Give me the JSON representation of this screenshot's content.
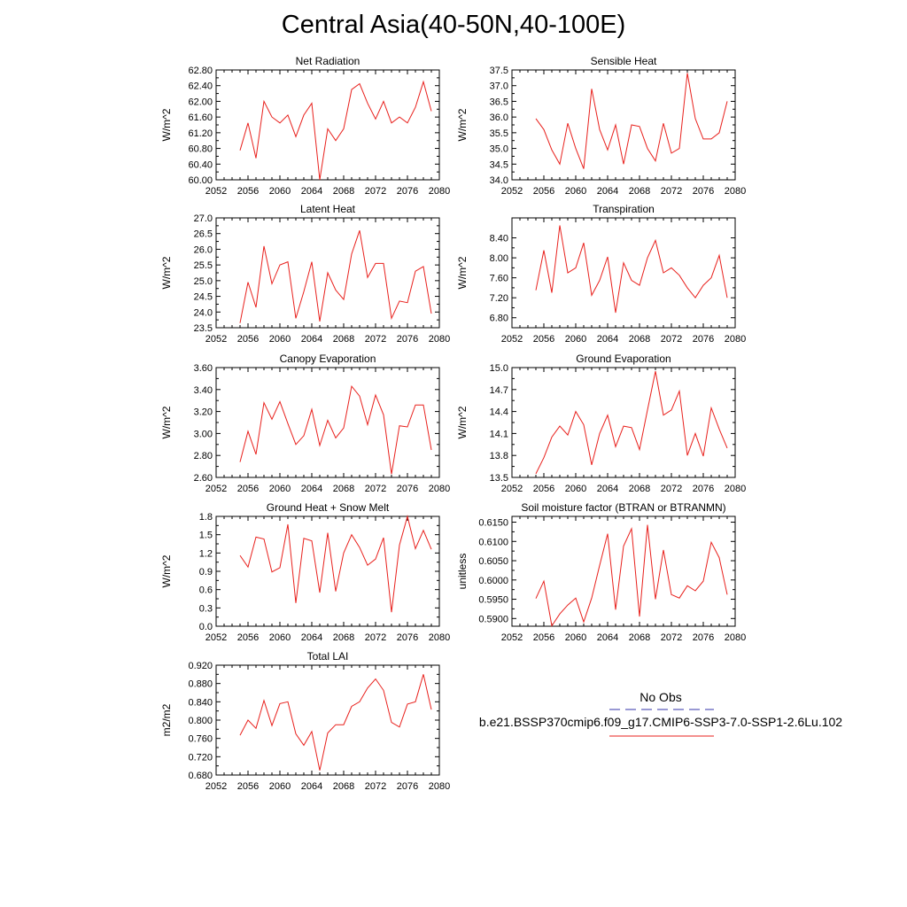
{
  "title": "Central Asia(40-50N,40-100E)",
  "colors": {
    "model": "#e8201c",
    "obs": "#3333aa",
    "axis": "#000000"
  },
  "legend": {
    "obs_label": "No Obs",
    "model_label": "b.e21.BSSP370cmip6.f09_g17.CMIP6-SSP3-7.0-SSP1-2.6Lu.102"
  },
  "chart_data": [
    {
      "type": "line",
      "title": "Net Radiation",
      "ylabel": "W/m^2",
      "xlim": [
        2052,
        2080
      ],
      "xticks": [
        2052,
        2056,
        2060,
        2064,
        2068,
        2072,
        2076,
        2080
      ],
      "ylim": [
        60.0,
        62.8
      ],
      "yticks": [
        "60.00",
        "60.40",
        "60.80",
        "61.20",
        "61.60",
        "62.00",
        "62.40",
        "62.80"
      ],
      "x": [
        2055,
        2056,
        2057,
        2058,
        2059,
        2060,
        2061,
        2062,
        2063,
        2064,
        2065,
        2066,
        2067,
        2068,
        2069,
        2070,
        2071,
        2072,
        2073,
        2074,
        2075,
        2076,
        2077,
        2078,
        2079
      ],
      "series": [
        {
          "values": [
            60.75,
            61.45,
            60.55,
            62.0,
            61.6,
            61.45,
            61.65,
            61.1,
            61.65,
            61.95,
            60.0,
            61.3,
            61.0,
            61.3,
            62.3,
            62.45,
            61.95,
            61.55,
            62.0,
            61.45,
            61.6,
            61.45,
            61.85,
            62.5,
            61.75
          ]
        }
      ]
    },
    {
      "type": "line",
      "title": "Sensible Heat",
      "ylabel": "W/m^2",
      "xlim": [
        2052,
        2080
      ],
      "xticks": [
        2052,
        2056,
        2060,
        2064,
        2068,
        2072,
        2076,
        2080
      ],
      "ylim": [
        34.0,
        37.5
      ],
      "yticks": [
        "34.0",
        "34.5",
        "35.0",
        "35.5",
        "36.0",
        "36.5",
        "37.0",
        "37.5"
      ],
      "x": [
        2055,
        2056,
        2057,
        2058,
        2059,
        2060,
        2061,
        2062,
        2063,
        2064,
        2065,
        2066,
        2067,
        2068,
        2069,
        2070,
        2071,
        2072,
        2073,
        2074,
        2075,
        2076,
        2077,
        2078,
        2079
      ],
      "series": [
        {
          "values": [
            35.95,
            35.6,
            34.95,
            34.5,
            35.8,
            35.0,
            34.35,
            36.9,
            35.6,
            34.95,
            35.75,
            34.5,
            35.75,
            35.7,
            35.0,
            34.6,
            35.8,
            34.85,
            35.0,
            37.4,
            35.95,
            35.3,
            35.3,
            35.5,
            36.5
          ]
        }
      ]
    },
    {
      "type": "line",
      "title": "Latent Heat",
      "ylabel": "W/m^2",
      "xlim": [
        2052,
        2080
      ],
      "xticks": [
        2052,
        2056,
        2060,
        2064,
        2068,
        2072,
        2076,
        2080
      ],
      "ylim": [
        23.5,
        27.0
      ],
      "yticks": [
        "23.5",
        "24.0",
        "24.5",
        "25.0",
        "25.5",
        "26.0",
        "26.5",
        "27.0"
      ],
      "x": [
        2055,
        2056,
        2057,
        2058,
        2059,
        2060,
        2061,
        2062,
        2063,
        2064,
        2065,
        2066,
        2067,
        2068,
        2069,
        2070,
        2071,
        2072,
        2073,
        2074,
        2075,
        2076,
        2077,
        2078,
        2079
      ],
      "series": [
        {
          "values": [
            23.65,
            24.95,
            24.15,
            26.1,
            24.9,
            25.5,
            25.6,
            23.8,
            24.65,
            25.6,
            23.7,
            25.25,
            24.7,
            24.4,
            25.85,
            26.6,
            25.1,
            25.55,
            25.55,
            23.8,
            24.35,
            24.3,
            25.3,
            25.45,
            23.95
          ]
        }
      ]
    },
    {
      "type": "line",
      "title": "Transpiration",
      "ylabel": "W/m^2",
      "xlim": [
        2052,
        2080
      ],
      "xticks": [
        2052,
        2056,
        2060,
        2064,
        2068,
        2072,
        2076,
        2080
      ],
      "ylim": [
        6.6,
        8.8
      ],
      "yticks": [
        "6.80",
        "7.20",
        "7.60",
        "8.00",
        "8.40"
      ],
      "ytickvals": [
        6.8,
        7.2,
        7.6,
        8.0,
        8.4
      ],
      "x": [
        2055,
        2056,
        2057,
        2058,
        2059,
        2060,
        2061,
        2062,
        2063,
        2064,
        2065,
        2066,
        2067,
        2068,
        2069,
        2070,
        2071,
        2072,
        2073,
        2074,
        2075,
        2076,
        2077,
        2078,
        2079
      ],
      "series": [
        {
          "values": [
            7.35,
            8.15,
            7.3,
            8.65,
            7.7,
            7.8,
            8.3,
            7.25,
            7.55,
            8.02,
            6.9,
            7.9,
            7.55,
            7.45,
            8.0,
            8.35,
            7.7,
            7.8,
            7.65,
            7.4,
            7.2,
            7.45,
            7.6,
            8.05,
            7.2
          ]
        }
      ]
    },
    {
      "type": "line",
      "title": "Canopy Evaporation",
      "ylabel": "W/m^2",
      "xlim": [
        2052,
        2080
      ],
      "xticks": [
        2052,
        2056,
        2060,
        2064,
        2068,
        2072,
        2076,
        2080
      ],
      "ylim": [
        2.6,
        3.6
      ],
      "yticks": [
        "2.60",
        "2.80",
        "3.00",
        "3.20",
        "3.40",
        "3.60"
      ],
      "x": [
        2055,
        2056,
        2057,
        2058,
        2059,
        2060,
        2061,
        2062,
        2063,
        2064,
        2065,
        2066,
        2067,
        2068,
        2069,
        2070,
        2071,
        2072,
        2073,
        2074,
        2075,
        2076,
        2077,
        2078,
        2079
      ],
      "series": [
        {
          "values": [
            2.74,
            3.02,
            2.81,
            3.28,
            3.13,
            3.29,
            3.09,
            2.9,
            2.98,
            3.22,
            2.89,
            3.12,
            2.96,
            3.05,
            3.43,
            3.34,
            3.08,
            3.35,
            3.17,
            2.63,
            3.07,
            3.06,
            3.26,
            3.26,
            2.85
          ]
        }
      ]
    },
    {
      "type": "line",
      "title": "Ground Evaporation",
      "ylabel": "W/m^2",
      "xlim": [
        2052,
        2080
      ],
      "xticks": [
        2052,
        2056,
        2060,
        2064,
        2068,
        2072,
        2076,
        2080
      ],
      "ylim": [
        13.5,
        15.0
      ],
      "yticks": [
        "13.5",
        "13.8",
        "14.1",
        "14.4",
        "14.7",
        "15.0"
      ],
      "x": [
        2055,
        2056,
        2057,
        2058,
        2059,
        2060,
        2061,
        2062,
        2063,
        2064,
        2065,
        2066,
        2067,
        2068,
        2069,
        2070,
        2071,
        2072,
        2073,
        2074,
        2075,
        2076,
        2077,
        2078,
        2079
      ],
      "series": [
        {
          "values": [
            13.55,
            13.77,
            14.05,
            14.2,
            14.08,
            14.4,
            14.22,
            13.67,
            14.1,
            14.35,
            13.92,
            14.2,
            14.18,
            13.88,
            14.42,
            14.95,
            14.35,
            14.42,
            14.68,
            13.8,
            14.1,
            13.79,
            14.45,
            14.16,
            13.9
          ]
        }
      ]
    },
    {
      "type": "line",
      "title": "Ground Heat + Snow Melt",
      "ylabel": "W/m^2",
      "xlim": [
        2052,
        2080
      ],
      "xticks": [
        2052,
        2056,
        2060,
        2064,
        2068,
        2072,
        2076,
        2080
      ],
      "ylim": [
        0.0,
        1.8
      ],
      "yticks": [
        "0.0",
        "0.3",
        "0.6",
        "0.9",
        "1.2",
        "1.5",
        "1.8"
      ],
      "x": [
        2055,
        2056,
        2057,
        2058,
        2059,
        2060,
        2061,
        2062,
        2063,
        2064,
        2065,
        2066,
        2067,
        2068,
        2069,
        2070,
        2071,
        2072,
        2073,
        2074,
        2075,
        2076,
        2077,
        2078,
        2079
      ],
      "series": [
        {
          "values": [
            1.16,
            0.97,
            1.46,
            1.43,
            0.89,
            0.96,
            1.67,
            0.38,
            1.44,
            1.4,
            0.55,
            1.53,
            0.57,
            1.2,
            1.5,
            1.29,
            1.0,
            1.1,
            1.45,
            0.23,
            1.33,
            1.8,
            1.27,
            1.57,
            1.26
          ]
        }
      ]
    },
    {
      "type": "line",
      "title": "Soil moisture factor (BTRAN or BTRANMN)",
      "ylabel": "unitless",
      "xlim": [
        2052,
        2080
      ],
      "xticks": [
        2052,
        2056,
        2060,
        2064,
        2068,
        2072,
        2076,
        2080
      ],
      "ylim": [
        0.588,
        0.6165
      ],
      "yticks": [
        "0.5900",
        "0.5950",
        "0.6000",
        "0.6050",
        "0.6100",
        "0.6150"
      ],
      "ytickvals": [
        0.59,
        0.595,
        0.6,
        0.605,
        0.61,
        0.615
      ],
      "x": [
        2055,
        2056,
        2057,
        2058,
        2059,
        2060,
        2061,
        2062,
        2063,
        2064,
        2065,
        2066,
        2067,
        2068,
        2069,
        2070,
        2071,
        2072,
        2073,
        2074,
        2075,
        2076,
        2077,
        2078,
        2079
      ],
      "series": [
        {
          "values": [
            0.5952,
            0.5997,
            0.5881,
            0.5912,
            0.5935,
            0.5953,
            0.5891,
            0.5953,
            0.6038,
            0.612,
            0.5923,
            0.6088,
            0.6133,
            0.5905,
            0.6143,
            0.595,
            0.6078,
            0.5962,
            0.5953,
            0.5985,
            0.5972,
            0.5997,
            0.6098,
            0.6058,
            0.5962
          ]
        }
      ]
    },
    {
      "type": "line",
      "title": "Total LAI",
      "ylabel": "m2/m2",
      "xlim": [
        2052,
        2080
      ],
      "xticks": [
        2052,
        2056,
        2060,
        2064,
        2068,
        2072,
        2076,
        2080
      ],
      "ylim": [
        0.68,
        0.92
      ],
      "yticks": [
        "0.680",
        "0.720",
        "0.760",
        "0.800",
        "0.840",
        "0.880",
        "0.920"
      ],
      "x": [
        2055,
        2056,
        2057,
        2058,
        2059,
        2060,
        2061,
        2062,
        2063,
        2064,
        2065,
        2066,
        2067,
        2068,
        2069,
        2070,
        2071,
        2072,
        2073,
        2074,
        2075,
        2076,
        2077,
        2078,
        2079
      ],
      "series": [
        {
          "values": [
            0.767,
            0.8,
            0.782,
            0.843,
            0.788,
            0.836,
            0.84,
            0.77,
            0.745,
            0.775,
            0.69,
            0.772,
            0.79,
            0.79,
            0.83,
            0.84,
            0.87,
            0.89,
            0.865,
            0.795,
            0.785,
            0.835,
            0.84,
            0.9,
            0.823
          ]
        }
      ]
    }
  ]
}
